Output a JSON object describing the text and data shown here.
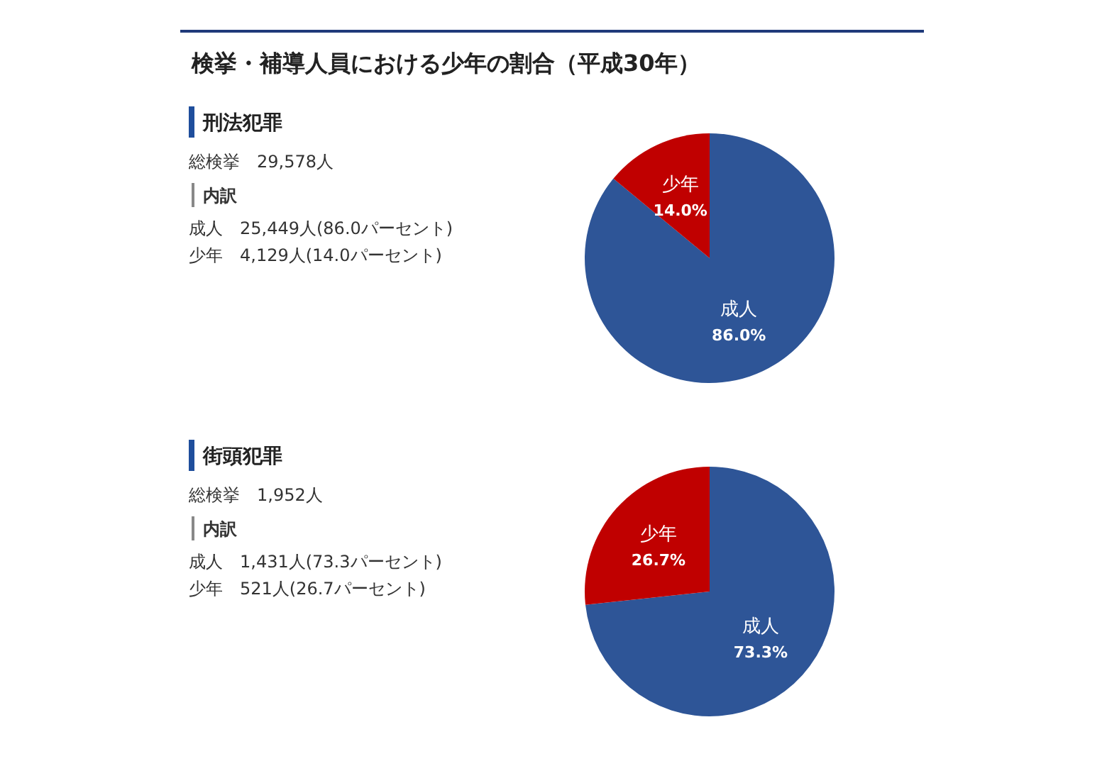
{
  "chart_data": [
    {
      "type": "other",
      "title": "検挙・補導人員における少年の割合（平成30年）",
      "subtitle": "刑法犯罪",
      "annotations": [
        "総検挙　29,578人",
        "内訳",
        "成人　25,449人(86.0パーセント)",
        "少年　4,129人(14.0パーセント)"
      ]
    },
    {
      "type": "pie",
      "categories": [
        "成人",
        "少年"
      ],
      "values": [
        86.0,
        14.0
      ],
      "value_labels": [
        "86.0%",
        "14.0%"
      ],
      "colors": [
        "#2e5597",
        "#c00000"
      ]
    },
    {
      "type": "other",
      "title": "街頭犯罪",
      "annotations": [
        "総検挙　1,952人",
        "内訳",
        "成人　1,431人(73.3パーセント)",
        "少年　521人(26.7パーセント)"
      ]
    },
    {
      "type": "pie",
      "categories": [
        "成人",
        "少年"
      ],
      "values": [
        73.3,
        26.7
      ],
      "value_labels": [
        "73.3%",
        "26.7%"
      ],
      "colors": [
        "#2e5597",
        "#c00000"
      ]
    }
  ]
}
